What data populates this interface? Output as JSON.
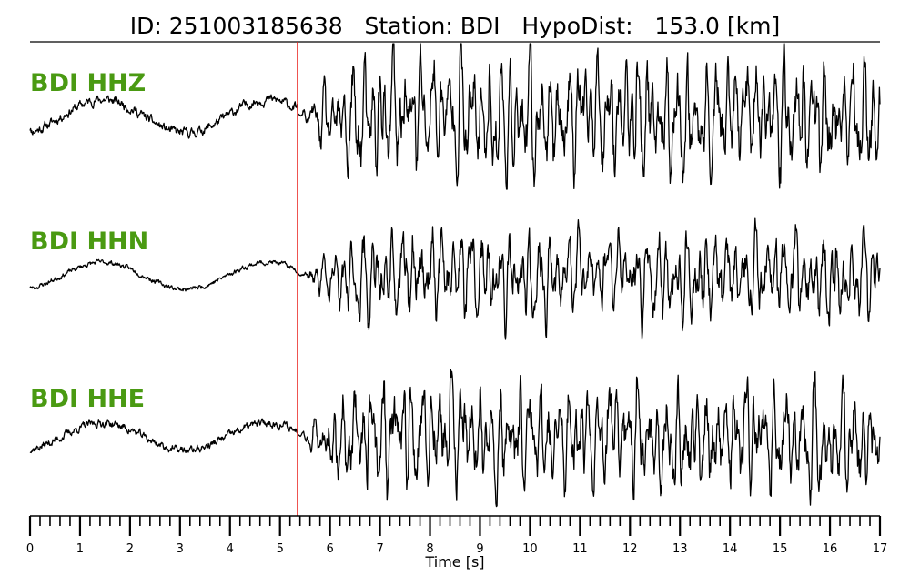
{
  "header": {
    "title": "ID: 251003185638   Station: BDI   HypoDist:   153.0 [km]"
  },
  "chart_data": {
    "type": "line",
    "title": "ID: 251003185638   Station: BDI   HypoDist:   153.0 [km]",
    "xlabel": "Time [s]",
    "ylabel": "",
    "xlim": [
      0,
      17
    ],
    "xticks": [
      "0",
      "1",
      "2",
      "3",
      "4",
      "5",
      "6",
      "7",
      "8",
      "9",
      "10",
      "11",
      "12",
      "13",
      "14",
      "15",
      "16",
      "17"
    ],
    "pick_time_s": 5.35,
    "grid": false,
    "colors": {
      "label": "#4a9a12",
      "pick": "#e8201a",
      "trace": "#000000"
    },
    "series": [
      {
        "name": "BDI HHZ",
        "noise_amp": 0.07,
        "coda_amp": 1.0,
        "seed": 11
      },
      {
        "name": "BDI HHN",
        "noise_amp": 0.04,
        "coda_amp": 0.85,
        "seed": 23
      },
      {
        "name": "BDI HHE",
        "noise_amp": 0.06,
        "coda_amp": 0.95,
        "seed": 37
      }
    ]
  }
}
